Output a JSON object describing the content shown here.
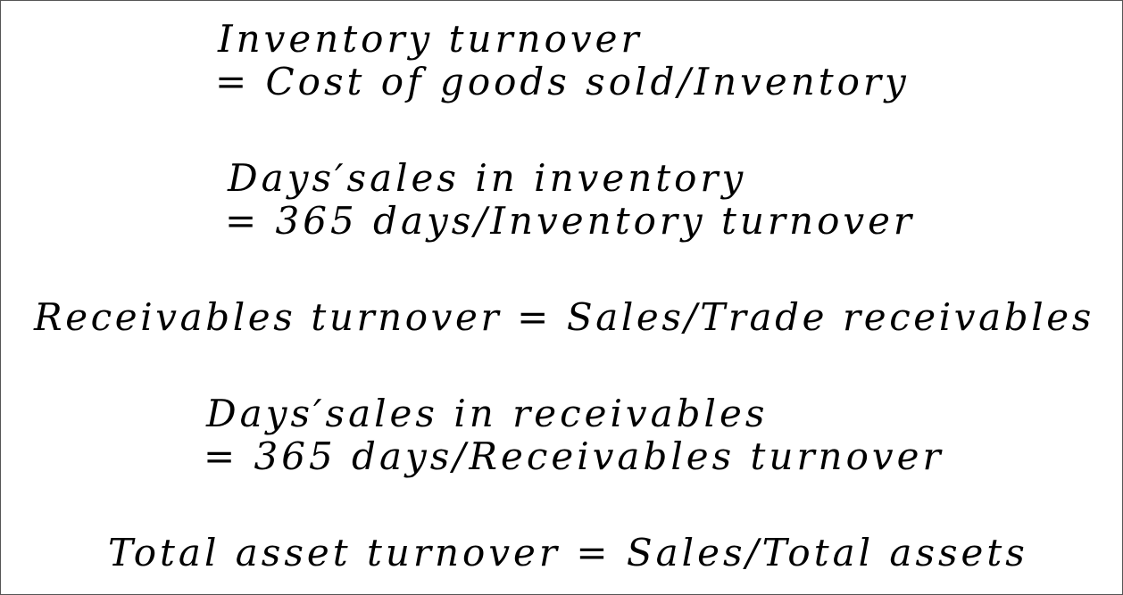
{
  "formulas": [
    {
      "lines": [
        "Inventory turnover",
        "= Cost of  goods sold/Inventory"
      ]
    },
    {
      "lines": [
        "Days′sales in inventory",
        "= 365 days/Inventory turnover"
      ]
    },
    {
      "lines": [
        "Receivables turnover = Sales/Trade receivables"
      ]
    },
    {
      "lines": [
        "Days′sales in receivables",
        "= 365 days/Receivables turnover"
      ]
    },
    {
      "lines": [
        "Total asset turnover = Sales/Total assets"
      ]
    }
  ]
}
